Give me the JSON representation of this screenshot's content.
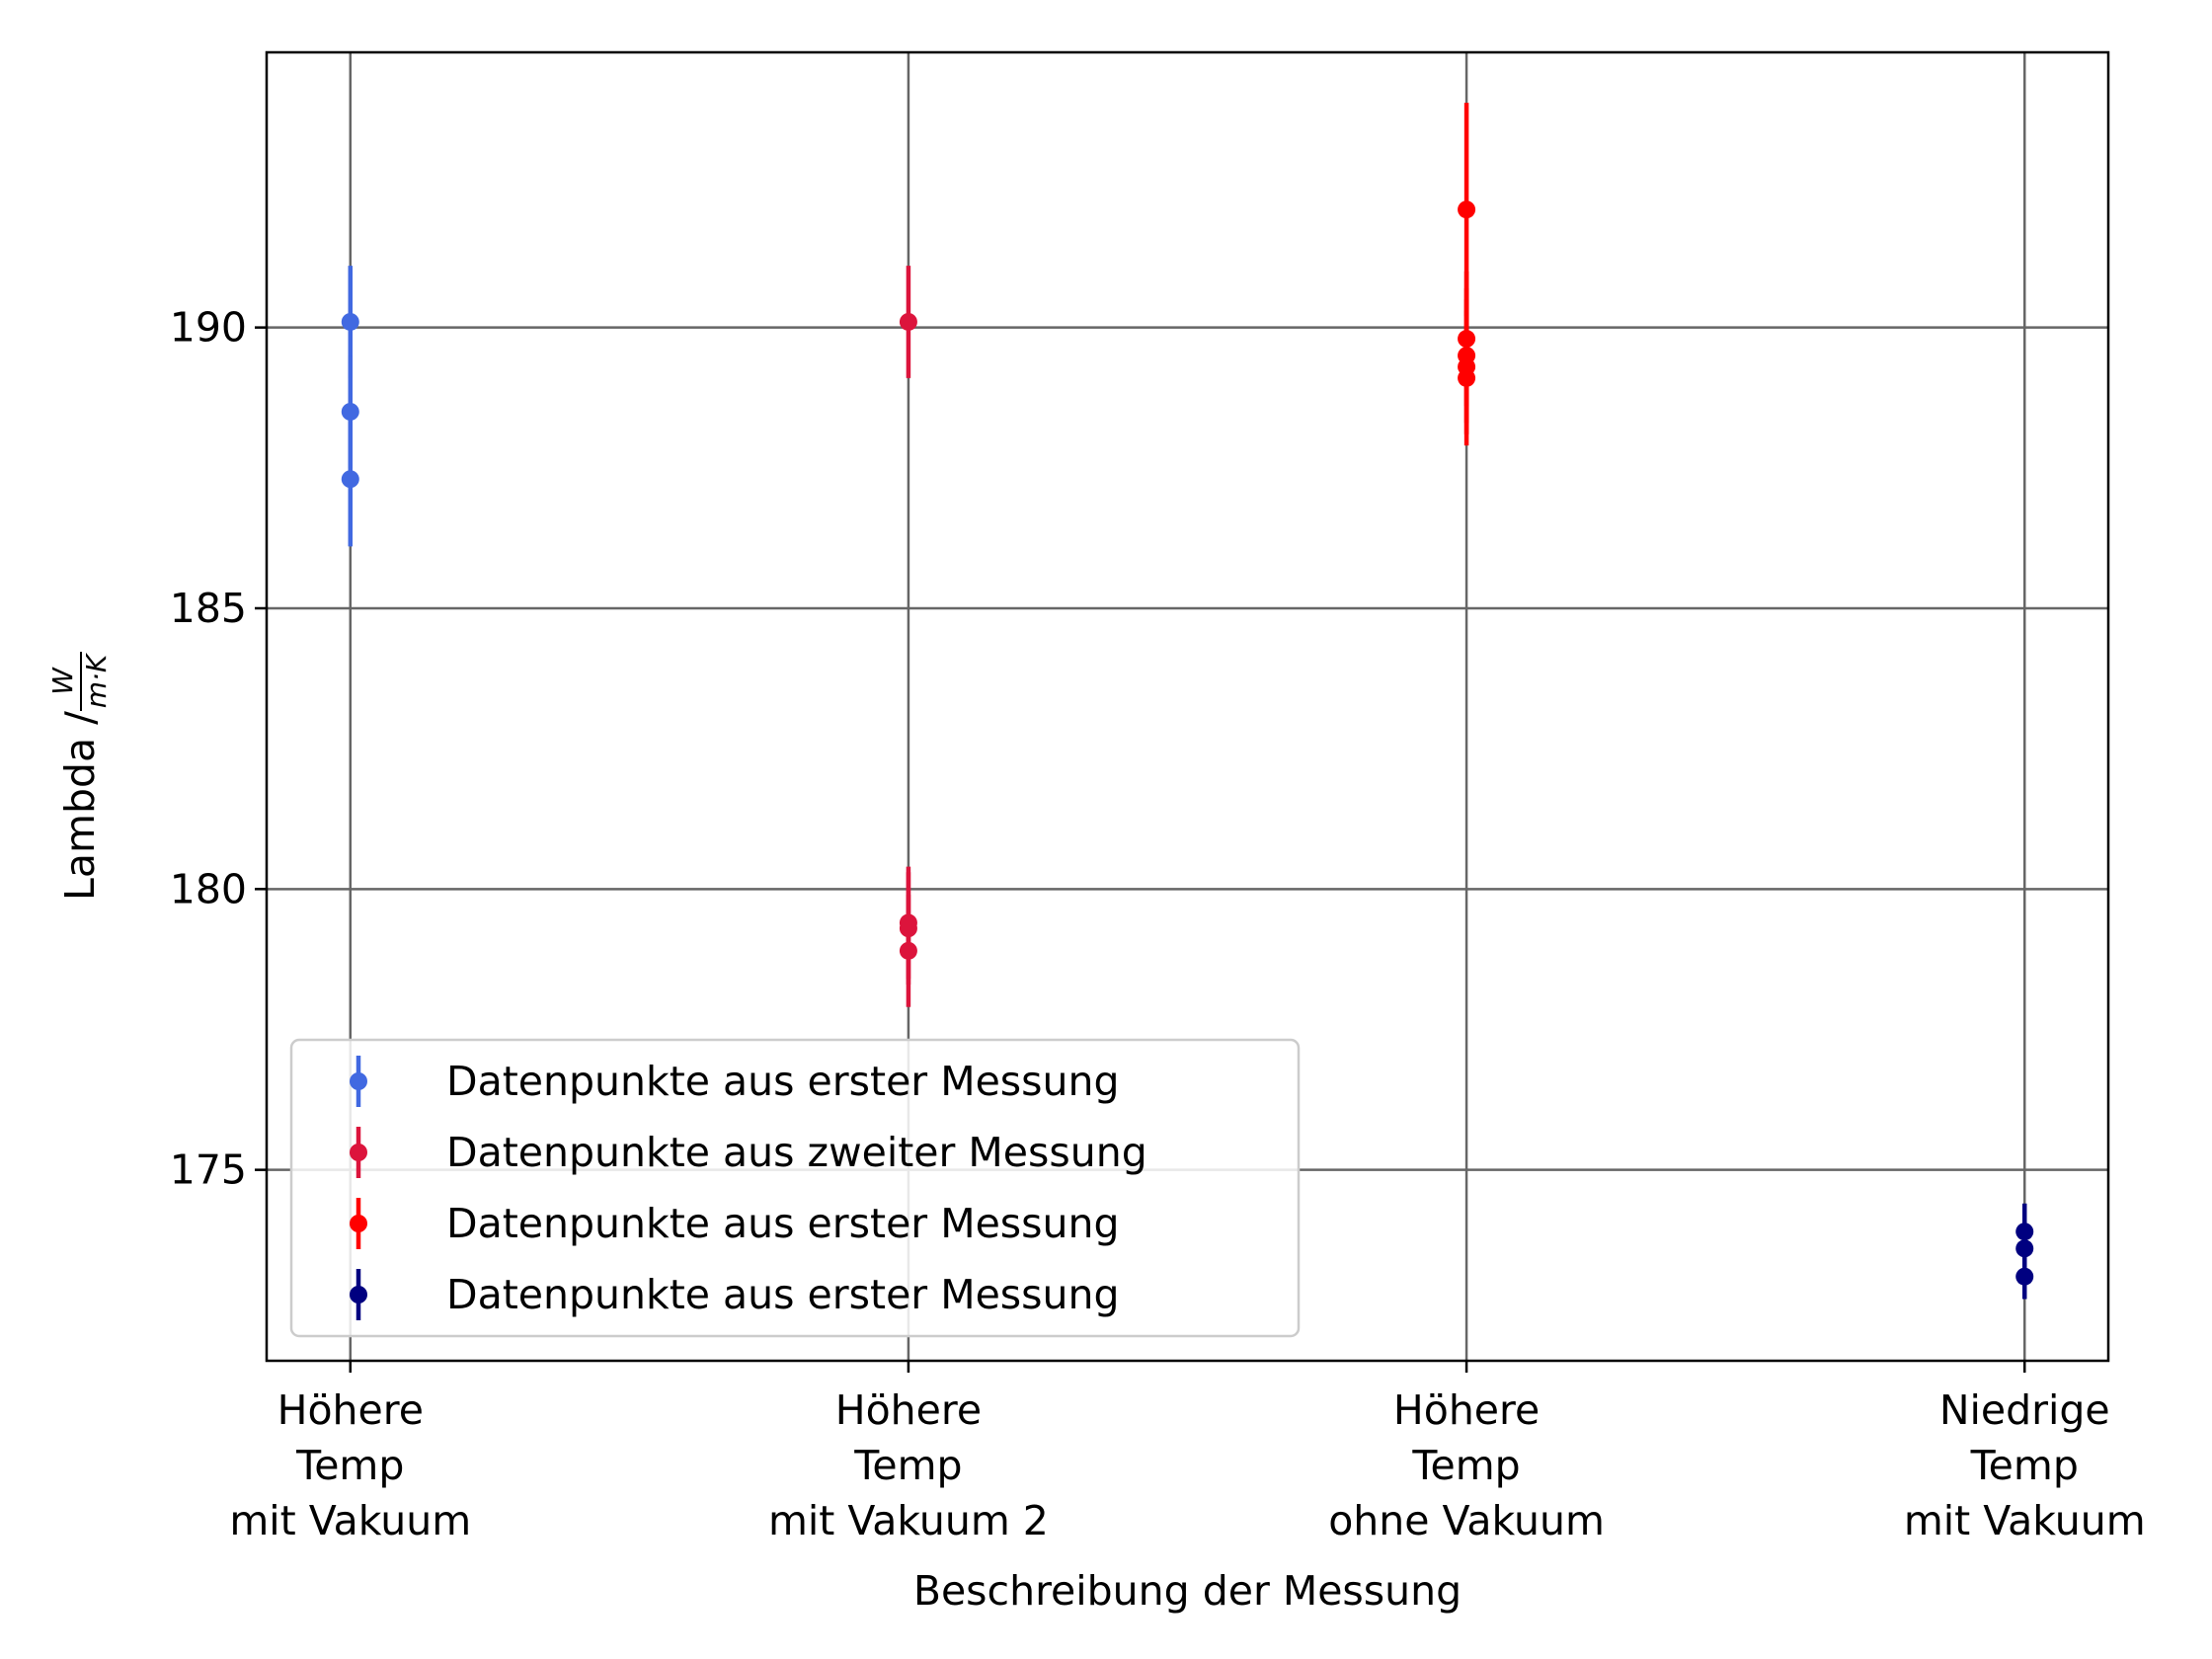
{
  "chart_data": {
    "type": "scatter",
    "xlabel": "Beschreibung der Messung",
    "ylabel": "Lambda / ",
    "ylabel_unit": {
      "numerator": "W",
      "denominator": "m·K"
    },
    "categories": [
      [
        "Höhere",
        "Temp",
        "mit Vakuum"
      ],
      [
        "Höhere",
        "Temp",
        "mit Vakuum 2"
      ],
      [
        "Höhere",
        "Temp",
        "ohne Vakuum"
      ],
      [
        "Niedrige",
        "Temp",
        "mit Vakuum"
      ]
    ],
    "xlim": [
      -0.15,
      3.15
    ],
    "ylim": [
      171.6,
      194.9
    ],
    "yticks": [
      175,
      180,
      185,
      190
    ],
    "grid": true,
    "legend_position": "lower-left",
    "series": [
      {
        "name": "Datenpunkte aus erster Messung",
        "color": "#4169E1",
        "x": [
          0,
          0,
          0
        ],
        "y": [
          190.1,
          188.5,
          187.3
        ],
        "yerr": [
          1.0,
          1.0,
          1.2
        ]
      },
      {
        "name": "Datenpunkte aus zweiter Messung",
        "color": "#DC143C",
        "x": [
          1,
          1,
          1,
          1
        ],
        "y": [
          190.1,
          179.4,
          179.3,
          178.9
        ],
        "yerr": [
          1.0,
          1.0,
          1.0,
          1.0
        ]
      },
      {
        "name": "Datenpunkte aus erster Messung",
        "color": "#FF0000",
        "x": [
          2,
          2,
          2,
          2,
          2
        ],
        "y": [
          192.1,
          189.8,
          189.5,
          189.3,
          189.1
        ],
        "yerr": [
          1.9,
          1.2,
          1.2,
          1.2,
          1.2
        ]
      },
      {
        "name": "Datenpunkte aus erster Messung",
        "color": "#000080",
        "x": [
          3,
          3,
          3
        ],
        "y": [
          173.9,
          173.6,
          173.1
        ],
        "yerr": [
          0.5,
          0.5,
          0.4
        ]
      }
    ]
  }
}
